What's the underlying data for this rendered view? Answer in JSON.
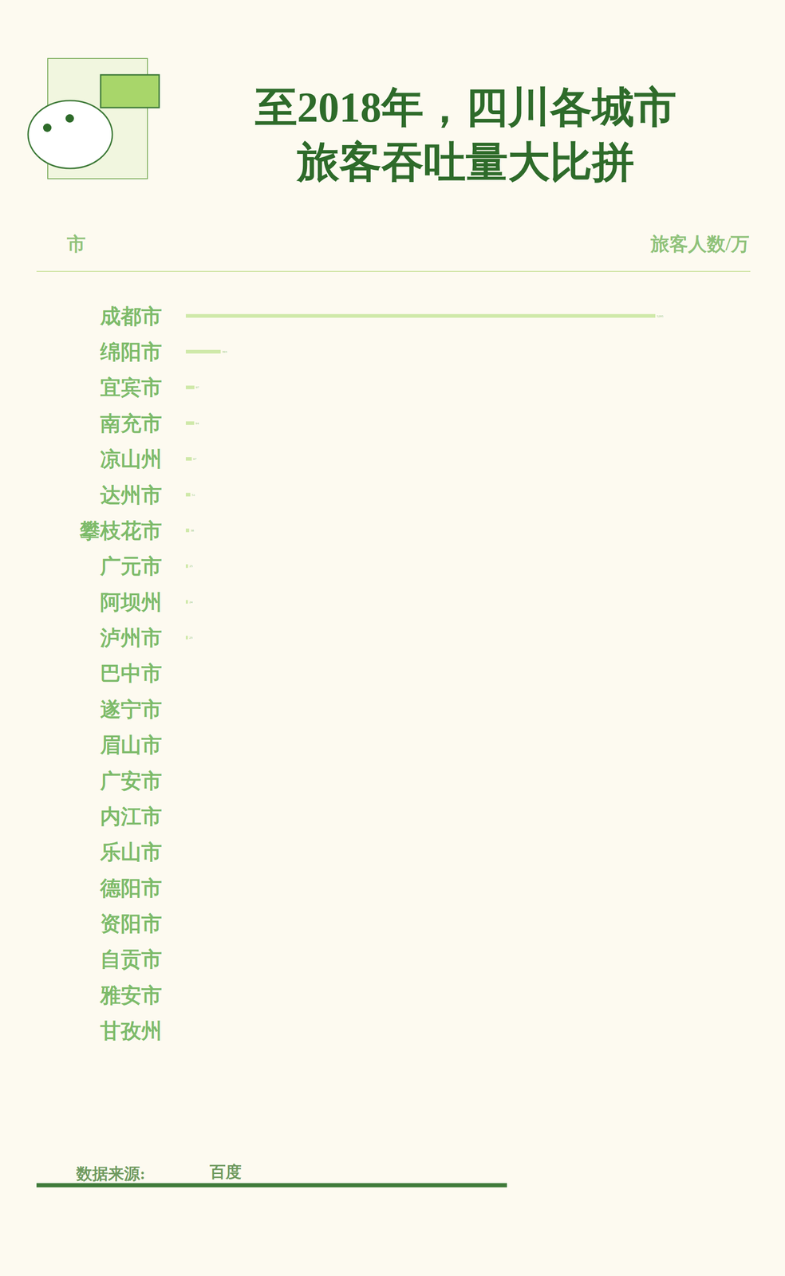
{
  "chart_data": {
    "type": "bar",
    "orientation": "horizontal",
    "title": "至2018年，四川各城市\n旅客吞吐量大比拼",
    "y_label": "市",
    "x_label": "旅客人数/万",
    "categories": [
      "成都市",
      "绵阳市",
      "宜宾市",
      "南充市",
      "凉山州",
      "达州市",
      "攀枝花市",
      "广元市",
      "阿坝州",
      "泸州市",
      "巴中市",
      "遂宁市",
      "眉山市",
      "广安市",
      "内江市",
      "乐山市",
      "德阳市",
      "资阳市",
      "自贡市",
      "雅安市",
      "甘孜州"
    ],
    "values": [
      5295,
      393,
      97,
      94,
      67,
      51,
      38,
      25,
      24,
      23,
      null,
      null,
      null,
      null,
      null,
      null,
      null,
      null,
      null,
      null,
      null
    ],
    "color": "#cfe9a9",
    "xlim": [
      0,
      5295
    ],
    "data_labels": true,
    "tick_labels": "y",
    "grid": false,
    "annotations": [
      {
        "text": "数据来源:"
      },
      {
        "text": "百度"
      }
    ]
  }
}
